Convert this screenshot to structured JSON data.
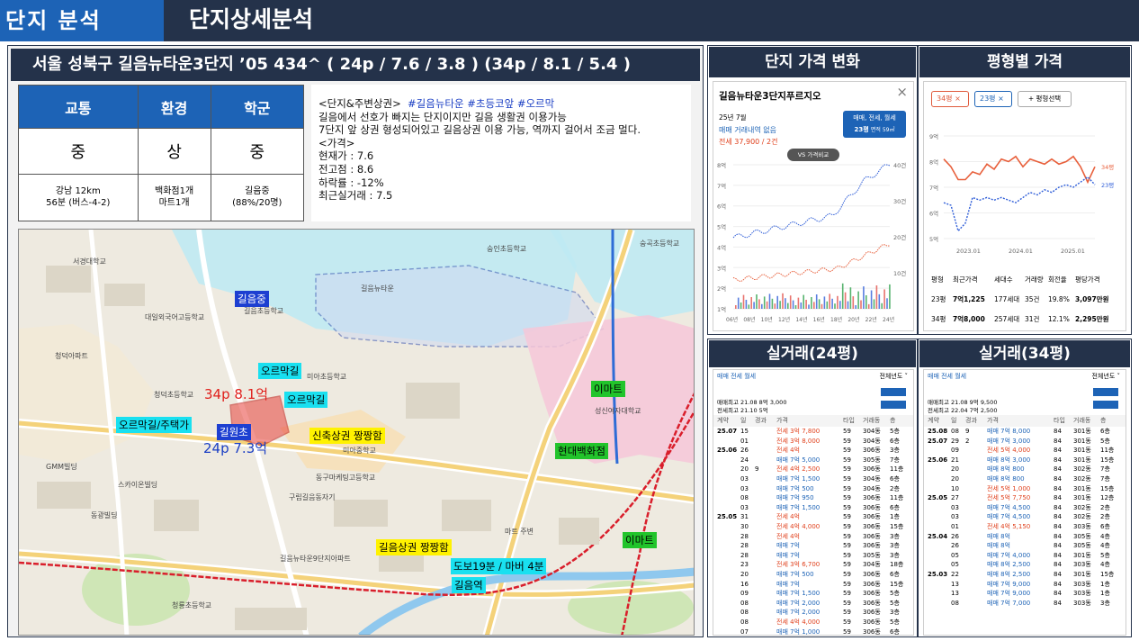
{
  "header": {
    "section": "단지 분석",
    "title": "단지상세분석"
  },
  "complex": {
    "title": "서울 성북구 길음뉴타운3단지 ’05 434^ ( 24p / 7.6 / 3.8 ) (34p / 8.1 / 5.4 )",
    "table": {
      "headers": [
        "교통",
        "환경",
        "학군"
      ],
      "grades": [
        "중",
        "상",
        "중"
      ],
      "details": [
        [
          "강남 12km",
          "56분 (버스-4-2)"
        ],
        [
          "백화점1개",
          "마트1개"
        ],
        [
          "길음중",
          "(88%/20명)"
        ]
      ]
    },
    "desc": {
      "line1_prefix": "<단지&주변상권>",
      "line1_tags": "#길음뉴타운 #초등코앞 #오르막",
      "line2": "길음에서 선호가 빠지는 단지이지만 길음 생활권 이용가능",
      "line3": "7단지 앞 상권 형성되어있고 길음상권 이용 가능, 역까지 걸어서 조금 멀다.",
      "line4": "<가격>",
      "line5": "현재가 : 7.6",
      "line6": "전고점 : 8.6",
      "line7": "하락률 : -12%",
      "line8": "최근실거래 : 7.5"
    }
  },
  "map": {
    "labels": {
      "school_mid": "길음중",
      "uphill1": "오르막길",
      "uphill2": "오르막길",
      "uphill3": "오르막길/주택가",
      "elem": "길원초",
      "commerce1": "신축상권 짱짱함",
      "commerce2": "길음상권 짱짱함",
      "station_walk": "도보19분 / 마버 4분",
      "station": "길음역",
      "emart1": "이마트",
      "emart2": "이마트",
      "hyundai": "현대백화점",
      "p34": "34p 8.1억",
      "p24": "24p 7.3억"
    },
    "place_names": [
      "서경대학교",
      "대일외국어고등학교",
      "청덕초등학교",
      "길음초등학교",
      "미아초등학교",
      "동구마케팅고등학교",
      "숭곡초등학교",
      "성신여자대학교",
      "구립길음동자기",
      "길음뉴타운",
      "숭인초등학교",
      "GMM빌딩",
      "스카이온빌딩",
      "동광빌딩",
      "청룡초등학교",
      "마트 주변",
      "길음뉴타운9단지아파트",
      "청덕아파트",
      "미아중학교"
    ]
  },
  "price_change": {
    "header": "단지 가격 변화",
    "card_title": "길음뉴타운3단지푸르지오",
    "month": "25년 7월",
    "no_trade": "매매 거래내역 없음",
    "jeonse": "전세 37,900 / 2건",
    "filter": "매매, 전세, 월세",
    "size": "23평",
    "size_sub": "면적 59㎡",
    "compare": "VS 가격비교",
    "y_left": [
      "8억",
      "7억",
      "6억",
      "5억",
      "4억",
      "3억",
      "2억",
      "1억"
    ],
    "y_right": [
      "40건",
      "30건",
      "20건",
      "10건"
    ],
    "x": [
      "06년",
      "08년",
      "10년",
      "12년",
      "14년",
      "16년",
      "18년",
      "20년",
      "22년",
      "24년"
    ]
  },
  "type_price": {
    "header": "평형별 가격",
    "chips": [
      "34평",
      "23평"
    ],
    "add": "+ 평형선택",
    "y": [
      "9억",
      "8억",
      "7억",
      "6억",
      "5억"
    ],
    "x": [
      "2023.01",
      "2024.01",
      "2025.01"
    ],
    "tag34": "34평",
    "tag23": "23평",
    "table_header": [
      "평형",
      "최근가격",
      "세대수",
      "거래량",
      "회전율",
      "평당가격"
    ],
    "rows": [
      [
        "23평",
        "7억1,225",
        "177세대",
        "35건",
        "19.8%",
        "3,097만원"
      ],
      [
        "34평",
        "7억8,000",
        "257세대",
        "31건",
        "12.1%",
        "2,295만원"
      ]
    ]
  },
  "trade24": {
    "header": "실거래(24평)",
    "tabs": "매매 전세 월세",
    "period": "전체년도",
    "summary1": "매매최고 21.08 8억 3,000",
    "summary2": "전세최고 21.10 5억",
    "col_headers": [
      "계약",
      "일",
      "경과",
      "가격",
      "타입",
      "거래동",
      "층"
    ],
    "rows": [
      [
        "25.07",
        "15",
        "",
        "전세 3억 7,800",
        "59",
        "304동",
        "5층"
      ],
      [
        "",
        "01",
        "",
        "전세 3억 8,000",
        "59",
        "304동",
        "6층"
      ],
      [
        "25.06",
        "26",
        "",
        "전세 4억",
        "59",
        "306동",
        "3층"
      ],
      [
        "",
        "24",
        "",
        "매매 7억 5,000",
        "59",
        "305동",
        "7층"
      ],
      [
        "",
        "20",
        "9",
        "전세 4억 2,500",
        "59",
        "306동",
        "11층"
      ],
      [
        "",
        "03",
        "",
        "매매 7억 1,500",
        "59",
        "304동",
        "6층"
      ],
      [
        "",
        "03",
        "",
        "매매 7억 500",
        "59",
        "304동",
        "2층"
      ],
      [
        "",
        "08",
        "",
        "매매 7억 950",
        "59",
        "306동",
        "11층"
      ],
      [
        "",
        "03",
        "",
        "매매 7억 1,500",
        "59",
        "306동",
        "6층"
      ],
      [
        "25.05",
        "31",
        "",
        "전세 4억",
        "59",
        "306동",
        "1층"
      ],
      [
        "",
        "30",
        "",
        "전세 4억 4,000",
        "59",
        "306동",
        "15층"
      ],
      [
        "",
        "28",
        "",
        "전세 4억",
        "59",
        "306동",
        "3층"
      ],
      [
        "",
        "28",
        "",
        "매매 7억",
        "59",
        "306동",
        "3층"
      ],
      [
        "",
        "28",
        "",
        "매매 7억",
        "59",
        "305동",
        "3층"
      ],
      [
        "",
        "23",
        "",
        "전세 3억 6,700",
        "59",
        "304동",
        "18층"
      ],
      [
        "",
        "20",
        "",
        "매매 7억 500",
        "59",
        "306동",
        "6층"
      ],
      [
        "",
        "16",
        "",
        "매매 7억",
        "59",
        "306동",
        "15층"
      ],
      [
        "",
        "09",
        "",
        "매매 7억 1,500",
        "59",
        "306동",
        "5층"
      ],
      [
        "",
        "08",
        "",
        "매매 7억 2,000",
        "59",
        "306동",
        "5층"
      ],
      [
        "",
        "08",
        "",
        "매매 7억 2,000",
        "59",
        "306동",
        "3층"
      ],
      [
        "",
        "08",
        "",
        "전세 4억 4,000",
        "59",
        "306동",
        "5층"
      ],
      [
        "",
        "07",
        "",
        "매매 7억 1,000",
        "59",
        "306동",
        "6층"
      ]
    ]
  },
  "trade34": {
    "header": "실거래(34평)",
    "tabs": "매매 전세 월세",
    "period": "전체년도",
    "summary1": "매매최고 21.08 9억 9,500",
    "summary2": "전세최고 22.04 7억 2,500",
    "col_headers": [
      "계약",
      "일",
      "경과",
      "가격",
      "타입",
      "거래동",
      "층"
    ],
    "rows": [
      [
        "25.08",
        "08",
        "9",
        "매매 7억 8,000",
        "84",
        "301동",
        "6층"
      ],
      [
        "25.07",
        "29",
        "2",
        "매매 7억 3,000",
        "84",
        "301동",
        "5층"
      ],
      [
        "",
        "09",
        "",
        "전세 5억 4,000",
        "84",
        "301동",
        "11층"
      ],
      [
        "25.06",
        "21",
        "",
        "매매 8억 3,000",
        "84",
        "301동",
        "15층"
      ],
      [
        "",
        "20",
        "",
        "매매 8억 800",
        "84",
        "302동",
        "7층"
      ],
      [
        "",
        "20",
        "",
        "매매 8억 800",
        "84",
        "302동",
        "7층"
      ],
      [
        "",
        "10",
        "",
        "전세 5억 1,000",
        "84",
        "301동",
        "15층"
      ],
      [
        "25.05",
        "27",
        "",
        "전세 5억 7,750",
        "84",
        "301동",
        "12층"
      ],
      [
        "",
        "03",
        "",
        "매매 7억 4,500",
        "84",
        "302동",
        "2층"
      ],
      [
        "",
        "03",
        "",
        "매매 7억 4,500",
        "84",
        "302동",
        "2층"
      ],
      [
        "",
        "01",
        "",
        "전세 4억 5,150",
        "84",
        "303동",
        "6층"
      ],
      [
        "25.04",
        "26",
        "",
        "매매 8억",
        "84",
        "305동",
        "4층"
      ],
      [
        "",
        "26",
        "",
        "매매 8억",
        "84",
        "305동",
        "4층"
      ],
      [
        "",
        "05",
        "",
        "매매 7억 4,000",
        "84",
        "301동",
        "5층"
      ],
      [
        "",
        "05",
        "",
        "매매 8억 2,500",
        "84",
        "303동",
        "4층"
      ],
      [
        "25.03",
        "22",
        "",
        "매매 8억 2,500",
        "84",
        "301동",
        "15층"
      ],
      [
        "",
        "13",
        "",
        "매매 7억 9,000",
        "84",
        "303동",
        "1층"
      ],
      [
        "",
        "13",
        "",
        "매매 7억 9,000",
        "84",
        "303동",
        "1층"
      ],
      [
        "",
        "08",
        "",
        "매매 7억 7,000",
        "84",
        "303동",
        "3층"
      ]
    ]
  }
}
